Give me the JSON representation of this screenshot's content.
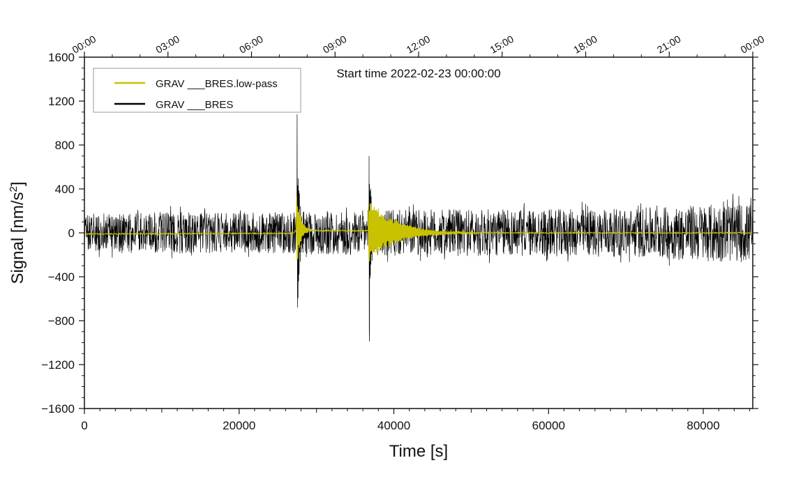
{
  "chart_data": {
    "type": "line",
    "xlabel": "Time [s]",
    "ylabel_main": "Signal [nm/s",
    "ylabel_sup": "2",
    "ylabel_end": "]",
    "xlim": [
      0,
      86400
    ],
    "ylim": [
      -1600,
      1600
    ],
    "xticks": [
      0,
      20000,
      40000,
      60000,
      80000
    ],
    "xtick_labels": [
      "0",
      "20000",
      "40000",
      "60000",
      "80000"
    ],
    "yticks": [
      -1600,
      -1200,
      -800,
      -400,
      0,
      400,
      800,
      1200,
      1600
    ],
    "ytick_labels": [
      "−1600",
      "−1200",
      "−800",
      "−400",
      "0",
      "400",
      "800",
      "1200",
      "1600"
    ],
    "top_axis": {
      "ticks": [
        0,
        10800,
        21600,
        32400,
        43200,
        54000,
        64800,
        75600,
        86400
      ],
      "labels": [
        "00:00",
        "03:00",
        "06:00",
        "09:00",
        "12:00",
        "15:00",
        "18:00",
        "21:00",
        "00:00"
      ]
    },
    "annotation": "Start time 2022-02-23 00:00:00",
    "legend": {
      "placement": "top-left",
      "entries": [
        {
          "label": "GRAV ___BRES.low-pass",
          "color": "#c8c200"
        },
        {
          "label": "GRAV ___BRES",
          "color": "#000000"
        }
      ]
    },
    "series": [
      {
        "name": "GRAV ___BRES",
        "color": "#000000",
        "noise_envelope_x": [
          0,
          10000,
          20000,
          27000,
          30000,
          36000,
          40000,
          50000,
          60000,
          70000,
          80000,
          86400
        ],
        "noise_envelope_y": [
          180,
          190,
          185,
          190,
          200,
          205,
          210,
          215,
          215,
          220,
          260,
          270
        ],
        "events": [
          {
            "time": 27500,
            "max": 1080,
            "min": -680
          },
          {
            "time": 36800,
            "max": 700,
            "min": -990
          }
        ]
      },
      {
        "name": "GRAV ___BRES.low-pass",
        "color": "#c8c200",
        "baseline_x": [
          0,
          10000,
          20000,
          27000,
          27400,
          30000,
          34000,
          36700,
          40000,
          45000,
          60000,
          86400
        ],
        "baseline_y": [
          -10,
          -8,
          -5,
          -5,
          30,
          20,
          20,
          20,
          10,
          0,
          0,
          0
        ],
        "events": [
          {
            "time": 27400,
            "amplitude": 400,
            "decay_seconds": 500
          },
          {
            "time": 36700,
            "amplitude": 300,
            "decay_seconds": 3500
          }
        ]
      }
    ]
  }
}
